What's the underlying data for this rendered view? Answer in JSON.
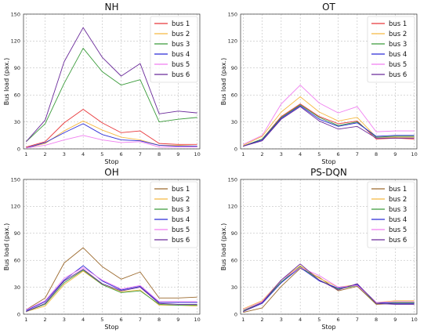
{
  "chart_data": [
    {
      "type": "line",
      "title": "NH",
      "xlabel": "Stop",
      "ylabel": "Bus load (pax.)",
      "x": [
        1,
        2,
        3,
        4,
        5,
        6,
        7,
        8,
        9,
        10
      ],
      "ylim": [
        0,
        150
      ],
      "yticks": [
        0,
        30,
        60,
        90,
        120,
        150
      ],
      "grid": true,
      "legend": "top-right",
      "series": [
        {
          "name": "bus 1",
          "color": "#e8383b",
          "values": [
            2,
            8,
            29,
            44,
            29,
            18,
            20,
            6,
            5,
            5
          ]
        },
        {
          "name": "bus 2",
          "color": "#f5b942",
          "values": [
            1,
            6,
            20,
            31,
            21,
            13,
            10,
            4,
            4,
            3
          ]
        },
        {
          "name": "bus 3",
          "color": "#3a9b3a",
          "values": [
            8,
            28,
            73,
            112,
            86,
            71,
            77,
            30,
            33,
            35
          ]
        },
        {
          "name": "bus 4",
          "color": "#2b2bd6",
          "values": [
            1,
            7,
            18,
            28,
            16,
            10,
            9,
            4,
            3,
            3
          ]
        },
        {
          "name": "bus 5",
          "color": "#f07ef0",
          "values": [
            1,
            4,
            10,
            15,
            10,
            7,
            8,
            2,
            2,
            2
          ]
        },
        {
          "name": "bus 6",
          "color": "#6a2a9a",
          "values": [
            8,
            32,
            97,
            135,
            102,
            81,
            95,
            39,
            42,
            40
          ]
        }
      ]
    },
    {
      "type": "line",
      "title": "OT",
      "xlabel": "Stop",
      "ylabel": "Bus load (pax.)",
      "x": [
        1,
        2,
        3,
        4,
        5,
        6,
        7,
        8,
        9,
        10
      ],
      "ylim": [
        0,
        150
      ],
      "yticks": [
        0,
        30,
        60,
        90,
        120,
        150
      ],
      "grid": true,
      "legend": "top-right",
      "series": [
        {
          "name": "bus 1",
          "color": "#e8383b",
          "values": [
            3,
            11,
            36,
            50,
            36,
            28,
            31,
            11,
            12,
            11
          ]
        },
        {
          "name": "bus 2",
          "color": "#f5b942",
          "values": [
            4,
            14,
            41,
            58,
            41,
            31,
            35,
            13,
            13,
            13
          ]
        },
        {
          "name": "bus 3",
          "color": "#3a9b3a",
          "values": [
            3,
            11,
            35,
            49,
            35,
            26,
            30,
            13,
            14,
            14
          ]
        },
        {
          "name": "bus 4",
          "color": "#2b2bd6",
          "values": [
            3,
            10,
            34,
            48,
            33,
            25,
            29,
            14,
            15,
            15
          ]
        },
        {
          "name": "bus 5",
          "color": "#f07ef0",
          "values": [
            5,
            15,
            50,
            71,
            51,
            40,
            47,
            19,
            20,
            20
          ]
        },
        {
          "name": "bus 6",
          "color": "#6a2a9a",
          "values": [
            3,
            9,
            33,
            47,
            31,
            22,
            25,
            12,
            12,
            12
          ]
        }
      ]
    },
    {
      "type": "line",
      "title": "OH",
      "xlabel": "Stop",
      "ylabel": "Bus load (pax.)",
      "x": [
        1,
        2,
        3,
        4,
        5,
        6,
        7,
        8,
        9,
        10
      ],
      "ylim": [
        0,
        150
      ],
      "yticks": [
        0,
        30,
        60,
        90,
        120,
        150
      ],
      "grid": true,
      "legend": "top-right",
      "series": [
        {
          "name": "bus 1",
          "color": "#9c6a2e",
          "values": [
            5,
            18,
            57,
            74,
            53,
            39,
            47,
            18,
            18,
            19
          ]
        },
        {
          "name": "bus 2",
          "color": "#f5b942",
          "values": [
            3,
            9,
            33,
            48,
            33,
            25,
            27,
            10,
            10,
            9
          ]
        },
        {
          "name": "bus 3",
          "color": "#3a9b3a",
          "values": [
            3,
            11,
            35,
            49,
            33,
            24,
            26,
            11,
            10,
            10
          ]
        },
        {
          "name": "bus 4",
          "color": "#2b2bd6",
          "values": [
            4,
            14,
            38,
            54,
            37,
            27,
            31,
            13,
            13,
            13
          ]
        },
        {
          "name": "bus 5",
          "color": "#f07ef0",
          "values": [
            5,
            15,
            40,
            52,
            38,
            28,
            32,
            14,
            14,
            14
          ]
        },
        {
          "name": "bus 6",
          "color": "#6a2a9a",
          "values": [
            3,
            12,
            37,
            50,
            34,
            26,
            30,
            12,
            11,
            11
          ]
        }
      ]
    },
    {
      "type": "line",
      "title": "PS-DQN",
      "xlabel": "Stop",
      "ylabel": "Bus load (pax.)",
      "x": [
        1,
        2,
        3,
        4,
        5,
        6,
        7,
        8,
        9,
        10
      ],
      "ylim": [
        0,
        150
      ],
      "yticks": [
        0,
        30,
        60,
        90,
        120,
        150
      ],
      "grid": true,
      "legend": "top-right",
      "series": [
        {
          "name": "bus 1",
          "color": "#9c6a2e",
          "values": [
            2,
            7,
            31,
            51,
            41,
            26,
            31,
            11,
            12,
            12
          ]
        },
        {
          "name": "bus 2",
          "color": "#f5b942",
          "values": [
            6,
            15,
            38,
            54,
            40,
            30,
            33,
            13,
            15,
            15
          ]
        },
        {
          "name": "bus 3",
          "color": "#3a9b3a",
          "values": [
            4,
            13,
            36,
            53,
            38,
            28,
            32,
            12,
            13,
            13
          ]
        },
        {
          "name": "bus 4",
          "color": "#2b2bd6",
          "values": [
            3,
            12,
            35,
            52,
            37,
            29,
            33,
            13,
            12,
            12
          ]
        },
        {
          "name": "bus 5",
          "color": "#f07ef0",
          "values": [
            5,
            14,
            38,
            52,
            43,
            30,
            32,
            13,
            14,
            14
          ]
        },
        {
          "name": "bus 6",
          "color": "#6a2a9a",
          "values": [
            3,
            13,
            38,
            56,
            38,
            27,
            34,
            12,
            11,
            11
          ]
        }
      ]
    }
  ]
}
